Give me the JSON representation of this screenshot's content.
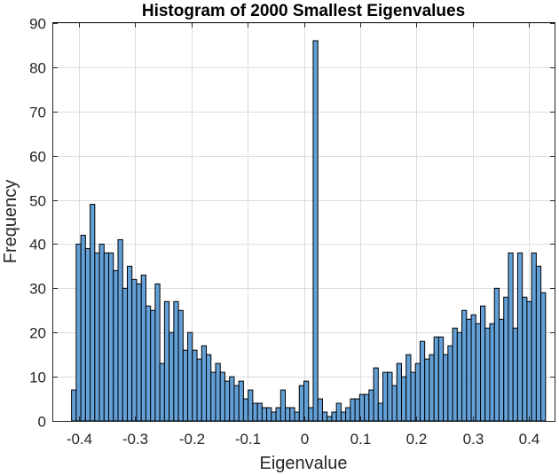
{
  "chart_data": {
    "type": "bar",
    "title": "Histogram of 2000 Smallest Eigenvalues",
    "xlabel": "Eigenvalue",
    "ylabel": "Frequency",
    "xlim": [
      -0.445,
      0.445
    ],
    "ylim": [
      0,
      90
    ],
    "grid": true,
    "xticks": [
      -0.4,
      -0.3,
      -0.2,
      -0.1,
      0,
      0.1,
      0.2,
      0.3,
      0.4
    ],
    "xtick_labels": [
      "-0.4",
      "-0.3",
      "-0.2",
      "-0.1",
      "0",
      "0.1",
      "0.2",
      "0.3",
      "0.4"
    ],
    "yticks": [
      0,
      10,
      20,
      30,
      40,
      50,
      60,
      70,
      80,
      90
    ],
    "ytick_labels": [
      "0",
      "10",
      "20",
      "30",
      "40",
      "50",
      "60",
      "70",
      "80",
      "90"
    ],
    "bin_start": -0.4125,
    "bin_width": 0.00825,
    "values": [
      7,
      40,
      42,
      39,
      49,
      38,
      40,
      38,
      38,
      34,
      41,
      30,
      35,
      32,
      31,
      33,
      26,
      25,
      31,
      13,
      27,
      20,
      27,
      25,
      16,
      20,
      16,
      14,
      17,
      15,
      11,
      13,
      11,
      9,
      10,
      8,
      9,
      5,
      7,
      4,
      4,
      3,
      3,
      2,
      3,
      7,
      3,
      3,
      2,
      8,
      9,
      3,
      86,
      5,
      2,
      1,
      2,
      4,
      2,
      3,
      5,
      5,
      6,
      6,
      7,
      12,
      4,
      11,
      11,
      8,
      13,
      10,
      15,
      11,
      13,
      18,
      14,
      15,
      19,
      19,
      15,
      17,
      21,
      20,
      25,
      23,
      24,
      22,
      26,
      21,
      22,
      30,
      23,
      28,
      38,
      21,
      38,
      28,
      27,
      38,
      35,
      29
    ]
  }
}
